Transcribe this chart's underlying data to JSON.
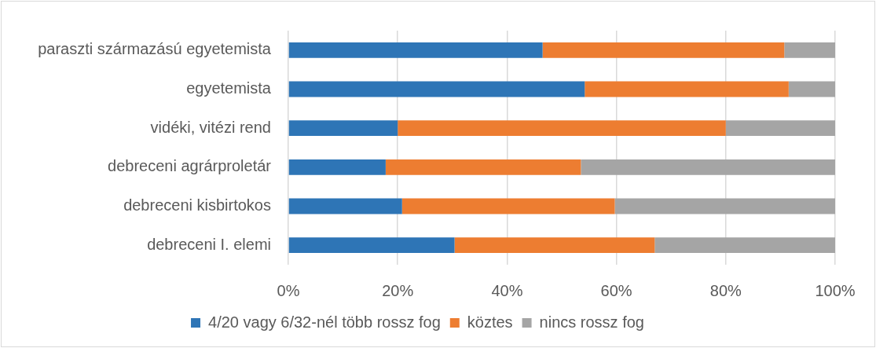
{
  "chart_data": {
    "type": "bar",
    "orientation": "horizontal",
    "stacked": true,
    "categories": [
      "paraszti származású egyetemista",
      "egyetemista",
      "vidéki, vitézi rend",
      "debreceni agrárproletár",
      "debreceni kisbirtokos",
      "debreceni I. elemi"
    ],
    "series": [
      {
        "name": "4/20 vagy 6/32-nél több rossz fog",
        "color": "#2e75b6",
        "values": [
          46.5,
          54.2,
          20,
          17.8,
          20.8,
          30.4
        ]
      },
      {
        "name": "köztes",
        "color": "#ed7d31",
        "values": [
          44.2,
          37.3,
          60,
          35.7,
          38.9,
          36.6
        ]
      },
      {
        "name": "nincs rossz fog",
        "color": "#a5a5a5",
        "values": [
          9.3,
          8.5,
          20,
          46.5,
          40.3,
          33.0
        ]
      }
    ],
    "xlim": [
      0,
      100
    ],
    "xticks": [
      {
        "value": 0,
        "label": "0%"
      },
      {
        "value": 20,
        "label": "20%"
      },
      {
        "value": 40,
        "label": "40%"
      },
      {
        "value": 60,
        "label": "60%"
      },
      {
        "value": 80,
        "label": "80%"
      },
      {
        "value": 100,
        "label": "100%"
      }
    ],
    "grid": "x",
    "legend": "bottom"
  }
}
